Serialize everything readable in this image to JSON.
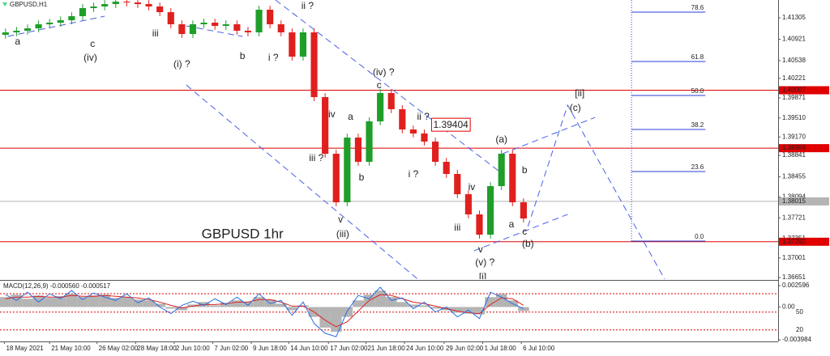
{
  "chart_data": [
    {
      "type": "candlestick",
      "title": "GBPUSD,H1",
      "xlim": [
        -0.5,
        70.1
      ],
      "ylim": [
        1.36622,
        1.41624
      ],
      "xticks": [
        {
          "value": -0.1,
          "label": "18 May 2021"
        },
        {
          "value": 4.0,
          "label": "21 May 10:00"
        },
        {
          "value": 8.3,
          "label": "26 May 02:00"
        },
        {
          "value": 11.8,
          "label": "28 May 18:00"
        },
        {
          "value": 15.3,
          "label": "2 Jun 10:00"
        },
        {
          "value": 18.8,
          "label": "7 Jun 02:00"
        },
        {
          "value": 22.3,
          "label": "9 Jun 18:00"
        },
        {
          "value": 25.7,
          "label": "14 Jun 10:00"
        },
        {
          "value": 29.3,
          "label": "17 Jun 02:00"
        },
        {
          "value": 32.7,
          "label": "21 Jun 18:00"
        },
        {
          "value": 36.2,
          "label": "24 Jun 10:00"
        },
        {
          "value": 39.8,
          "label": "29 Jun 02:00"
        },
        {
          "value": 43.3,
          "label": "1 Jul 18:00"
        },
        {
          "value": 46.8,
          "label": "6 Jul 10:00"
        }
      ],
      "yticks": [
        1.41305,
        1.40921,
        1.40538,
        1.40221,
        1.39871,
        {
          "value": 1.3951,
          "label": "1.39510"
        },
        {
          "value": 1.3917,
          "label": "1.39170"
        },
        1.38841,
        1.38455,
        1.38094,
        1.37721,
        1.37351,
        1.37001,
        1.36651
      ],
      "up_color": "#1f9e2a",
      "down_color": "#e0201e",
      "open": [
        1.41,
        1.41044,
        1.41073,
        1.41116,
        1.41189,
        1.41218,
        1.41261,
        1.41334,
        1.41479,
        1.41508,
        1.41551,
        1.41595,
        1.4158,
        1.41551,
        1.41508,
        1.41406,
        1.41189,
        1.41015,
        1.41189,
        1.41218,
        1.4116,
        1.41189,
        1.41073,
        1.41044,
        1.4145,
        1.41189,
        1.41044,
        1.40609,
        1.41044,
        1.39884,
        1.38869,
        1.37999,
        1.39159,
        1.38724,
        1.39449,
        1.39957,
        1.39667,
        1.39304,
        1.39232,
        1.39087,
        1.38724,
        1.38507,
        1.38144,
        1.37782,
        1.37419,
        1.38289,
        1.38869,
        1.37999
      ],
      "high": [
        1.41114,
        1.41143,
        1.41186,
        1.41259,
        1.41288,
        1.41331,
        1.41404,
        1.41549,
        1.41578,
        1.41621,
        1.41665,
        1.41665,
        1.4165,
        1.41621,
        1.41578,
        1.41476,
        1.41259,
        1.41259,
        1.41288,
        1.41288,
        1.41259,
        1.41259,
        1.41143,
        1.4152,
        1.4152,
        1.41259,
        1.41114,
        1.41114,
        1.41114,
        1.39954,
        1.38939,
        1.39229,
        1.39229,
        1.39519,
        1.40027,
        1.40027,
        1.39737,
        1.39374,
        1.39302,
        1.39157,
        1.38794,
        1.38577,
        1.38214,
        1.37852,
        1.38359,
        1.38939,
        1.38939,
        1.38069
      ],
      "low": [
        1.4093,
        1.40974,
        1.41003,
        1.41046,
        1.41119,
        1.41148,
        1.41191,
        1.41264,
        1.41409,
        1.41438,
        1.41481,
        1.4151,
        1.41481,
        1.41438,
        1.41336,
        1.41119,
        1.40945,
        1.40945,
        1.41119,
        1.4109,
        1.4109,
        1.41003,
        1.40974,
        1.40974,
        1.41119,
        1.40974,
        1.40539,
        1.40539,
        1.39814,
        1.38799,
        1.37929,
        1.37929,
        1.38654,
        1.38654,
        1.39379,
        1.39597,
        1.39234,
        1.39162,
        1.39017,
        1.38654,
        1.38437,
        1.38074,
        1.37712,
        1.37349,
        1.37349,
        1.38219,
        1.37929,
        1.37639
      ],
      "close": [
        1.41044,
        1.41073,
        1.41116,
        1.41189,
        1.41218,
        1.41261,
        1.41334,
        1.41479,
        1.41508,
        1.41551,
        1.41595,
        1.4158,
        1.41551,
        1.41508,
        1.41406,
        1.41189,
        1.41015,
        1.41189,
        1.41218,
        1.4116,
        1.41189,
        1.41073,
        1.41044,
        1.4145,
        1.41189,
        1.41044,
        1.40609,
        1.41044,
        1.39884,
        1.38869,
        1.37999,
        1.39159,
        1.38724,
        1.39449,
        1.39957,
        1.39667,
        1.39304,
        1.39232,
        1.39087,
        1.38724,
        1.38507,
        1.38144,
        1.37782,
        1.37419,
        1.38289,
        1.38869,
        1.37999,
        1.37709
      ],
      "hlines": [
        {
          "value": 1.40007,
          "color": "#e00000"
        },
        {
          "value": 1.38969,
          "color": "#e00000"
        },
        {
          "value": 1.38015,
          "color": "#b4b4b4"
        },
        {
          "value": 1.37292,
          "color": "#e00000"
        }
      ],
      "fib": {
        "color": "#2a3fd6",
        "x": [
          56.8,
          63.5
        ],
        "levels": [
          {
            "label": "78.6",
            "price": 1.41406
          },
          {
            "label": "61.8",
            "price": 1.40522
          },
          {
            "label": "50.0",
            "price": 1.39913
          },
          {
            "label": "38.2",
            "price": 1.39304
          },
          {
            "label": "23.6",
            "price": 1.3855
          },
          {
            "label": "0.0",
            "price": 1.37303
          }
        ]
      },
      "trendlines": {
        "color": "#4a5fe6",
        "lines": [
          {
            "x": [
              0.2,
              9.0
            ],
            "price": [
              1.40971,
              1.41334
            ]
          },
          {
            "x": [
              16.4,
              21.5
            ],
            "price": [
              1.4116,
              1.40971
            ]
          },
          {
            "x": [
              24.5,
              45.1
            ],
            "price": [
              1.41624,
              1.38507
            ]
          },
          {
            "x": [
              16.4,
              37.4
            ],
            "price": [
              1.40101,
              1.36622
            ]
          },
          {
            "x": [
              42.5,
              51.0
            ],
            "price": [
              1.37129,
              1.37782
            ]
          },
          {
            "x": [
              45.1,
              53.5
            ],
            "price": [
              1.38869,
              1.39521
            ]
          },
          {
            "x": [
              47.4,
              51.0,
              59.8
            ],
            "price": [
              1.37564,
              1.39739,
              1.36622
            ]
          }
        ]
      },
      "annotations": [
        {
          "text": "a",
          "x": 1.1,
          "price": 1.4087,
          "color": "#c2188f",
          "style": "label"
        },
        {
          "text": "c",
          "x": 7.9,
          "price": 1.40826,
          "color": "#c2188f",
          "style": "label"
        },
        {
          "text": "(iv)",
          "x": 7.7,
          "price": 1.4058,
          "color": "#4d5c55",
          "style": "label"
        },
        {
          "text": "iii",
          "x": 13.6,
          "price": 1.41015,
          "color": "#c2188f",
          "style": "label"
        },
        {
          "text": "(i) ?",
          "x": 16.0,
          "price": 1.40464,
          "color": "#4d5c55",
          "style": "label"
        },
        {
          "text": "b",
          "x": 21.5,
          "price": 1.40609,
          "color": "#c2188f",
          "style": "label"
        },
        {
          "text": "i ?",
          "x": 24.3,
          "price": 1.4058,
          "color": "#c2188f",
          "style": "label"
        },
        {
          "text": "ii ?",
          "x": 27.4,
          "price": 1.41508,
          "color": "#c2188f",
          "style": "label"
        },
        {
          "text": "(iv) ?",
          "x": 34.3,
          "price": 1.40319,
          "color": "#4d5c55",
          "style": "label"
        },
        {
          "text": "c",
          "x": 33.9,
          "price": 1.40087,
          "color": "#c2188f",
          "style": "label"
        },
        {
          "text": "iv",
          "x": 29.6,
          "price": 1.39565,
          "color": "#c2188f",
          "style": "label"
        },
        {
          "text": "a",
          "x": 31.3,
          "price": 1.39521,
          "color": "#c2188f",
          "style": "label"
        },
        {
          "text": "ii ?",
          "x": 37.9,
          "price": 1.39521,
          "color": "#c2188f",
          "style": "label"
        },
        {
          "text": "1.39404",
          "x": 40.4,
          "price": 1.39377,
          "color": "#e00000",
          "style": "box"
        },
        {
          "text": "iii ?",
          "x": 28.2,
          "price": 1.38782,
          "color": "#c2188f",
          "style": "label"
        },
        {
          "text": "b",
          "x": 32.3,
          "price": 1.38434,
          "color": "#c2188f",
          "style": "label"
        },
        {
          "text": "i ?",
          "x": 37.0,
          "price": 1.38492,
          "color": "#c2188f",
          "style": "label"
        },
        {
          "text": "v",
          "x": 30.4,
          "price": 1.3768,
          "color": "#c2188f",
          "style": "label"
        },
        {
          "text": "(iii)",
          "x": 30.6,
          "price": 1.37419,
          "color": "#4d5c55",
          "style": "label"
        },
        {
          "text": "iv",
          "x": 42.3,
          "price": 1.3826,
          "color": "#c2188f",
          "style": "label"
        },
        {
          "text": "iii",
          "x": 41.0,
          "price": 1.37535,
          "color": "#c2188f",
          "style": "label"
        },
        {
          "text": "(a)",
          "x": 45.0,
          "price": 1.39116,
          "color": "#4d5c55",
          "style": "label"
        },
        {
          "text": "b",
          "x": 47.1,
          "price": 1.38565,
          "color": "#c2188f",
          "style": "label"
        },
        {
          "text": "a",
          "x": 45.9,
          "price": 1.37593,
          "color": "#c2188f",
          "style": "label"
        },
        {
          "text": "c",
          "x": 47.1,
          "price": 1.37462,
          "color": "#c2188f",
          "style": "label"
        },
        {
          "text": "(b)",
          "x": 47.4,
          "price": 1.37245,
          "color": "#4d5c55",
          "style": "label"
        },
        {
          "text": "v",
          "x": 43.1,
          "price": 1.37144,
          "color": "#c2188f",
          "style": "label"
        },
        {
          "text": "(v) ?",
          "x": 43.5,
          "price": 1.36912,
          "color": "#4d5c55",
          "style": "label"
        },
        {
          "text": "[ii]",
          "x": 52.1,
          "price": 1.39942,
          "color": "#3c9a3c",
          "style": "label"
        },
        {
          "text": "(c)",
          "x": 51.7,
          "price": 1.39681,
          "color": "#4d5c55",
          "style": "label"
        },
        {
          "text": "[i]",
          "x": 43.3,
          "price": 1.3665,
          "color": "#3c9a3c",
          "style": "label"
        },
        {
          "text": "GBPUSD 1hr",
          "x": 21.5,
          "price": 1.37419,
          "color": "#e00000",
          "style": "heading"
        }
      ]
    },
    {
      "type": "macd",
      "title": "MACD(12,26,9) -0.000560 -0.000517",
      "ylim": [
        -0.00418,
        0.003087
      ],
      "yticks": [
        0.002596,
        {
          "value": 0,
          "label": "0.00"
        },
        -0.003984
      ],
      "levels": {
        "color": "#e00000",
        "lines": [
          {
            "value": 0.001614
          },
          {
            "value": -0.000615,
            "label": "50"
          },
          {
            "value": -0.002775,
            "label": "20"
          }
        ]
      },
      "series": [
        {
          "color": "#b4b4b4",
          "style": "histogram",
          "values": [
            0.0012,
            0.0015,
            0.001,
            0.0014,
            0.0011,
            0.0013,
            0.0016,
            0.0012,
            0.0014,
            0.0015,
            0.0011,
            0.0012,
            0.0009,
            0.0008,
            0.0004,
            -0.0002,
            -0.0004,
            0.0003,
            0.0006,
            0.0002,
            0.0005,
            0.0008,
            0.0006,
            0.0012,
            0.0009,
            0.0004,
            -0.0004,
            0.0002,
            -0.0012,
            -0.0025,
            -0.003,
            -0.0012,
            0.0008,
            0.0015,
            0.002,
            0.0012,
            0.0006,
            0.0003,
            0.0002,
            -0.0002,
            -0.0004,
            -0.0007,
            -0.0008,
            -0.0009,
            0.0012,
            0.0016,
            0.0008,
            -0.0005
          ]
        },
        {
          "color": "#e02020",
          "style": "line",
          "values": [
            0.001,
            0.0012,
            0.0012,
            0.0013,
            0.0012,
            0.0012,
            0.0014,
            0.0013,
            0.0013,
            0.0014,
            0.0013,
            0.0012,
            0.0011,
            0.0009,
            0.0006,
            0.0002,
            -0.0001,
            0.0001,
            0.0003,
            0.0003,
            0.0004,
            0.0006,
            0.0006,
            0.0009,
            0.0009,
            0.0006,
            0.0001,
            0.0001,
            -0.0006,
            -0.0016,
            -0.0024,
            -0.0018,
            -0.0005,
            0.0008,
            0.0015,
            0.0014,
            0.001,
            0.0006,
            0.0004,
            0.0001,
            -0.0002,
            -0.0005,
            -0.0007,
            -0.0008,
            0.0003,
            0.0011,
            0.001,
            0.0002
          ]
        },
        {
          "color": "#2a6fe0",
          "style": "line",
          "values": [
            0.0015,
            0.0008,
            0.0018,
            0.0006,
            0.0016,
            0.001,
            0.002,
            0.0009,
            0.0017,
            0.0012,
            0.0008,
            0.0016,
            0.0005,
            0.0011,
            0.0,
            -0.0008,
            0.0002,
            0.0007,
            0.0002,
            0.001,
            0.0003,
            0.0012,
            0.0002,
            0.0016,
            0.0004,
            0.0008,
            -0.001,
            0.0006,
            -0.002,
            -0.0032,
            -0.0036,
            -0.0005,
            0.0014,
            0.001,
            0.0024,
            0.0008,
            0.0011,
            -0.0002,
            0.0006,
            -0.0006,
            0.0,
            -0.0012,
            -0.0004,
            -0.0014,
            0.0018,
            0.0012,
            0.0004,
            -0.0002
          ]
        }
      ]
    }
  ]
}
